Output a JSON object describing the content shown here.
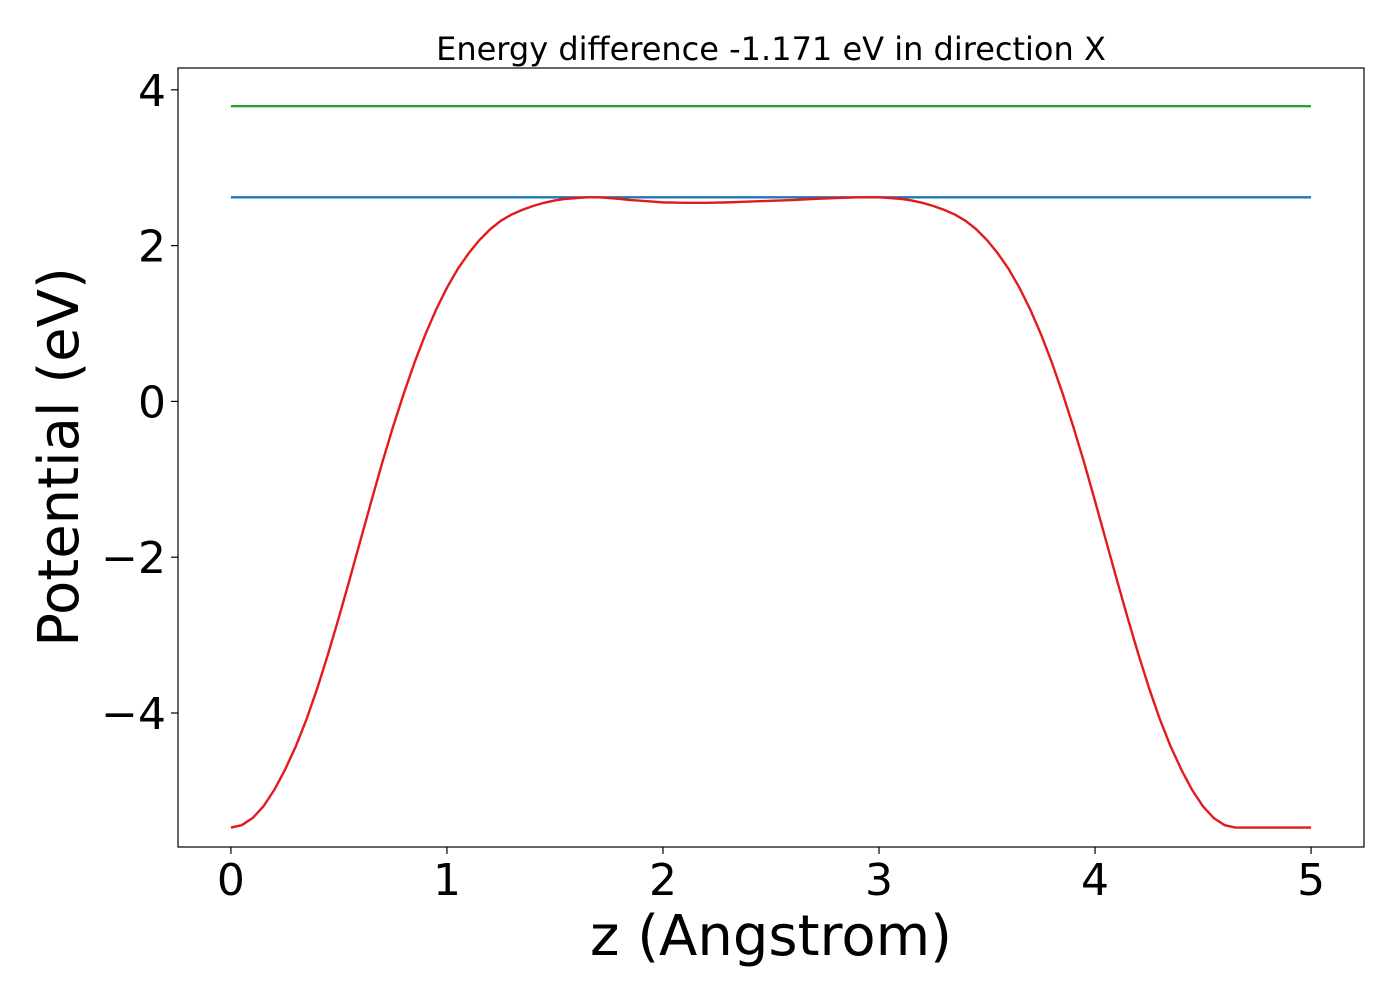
{
  "chart_data": {
    "type": "line",
    "title": "Energy difference -1.171 eV in direction X",
    "xlabel": "z (Angstrom)",
    "ylabel": "Potential (eV)",
    "xlim": [
      -0.245,
      5.245
    ],
    "ylim": [
      -5.72,
      4.28
    ],
    "xticks": [
      0,
      1,
      2,
      3,
      4,
      5
    ],
    "xtick_labels": [
      "0",
      "1",
      "2",
      "3",
      "4",
      "5"
    ],
    "yticks": [
      -4,
      -2,
      0,
      2,
      4
    ],
    "ytick_labels": [
      "−4",
      "−2",
      "0",
      "2",
      "4"
    ],
    "grid": false,
    "series": [
      {
        "color": "#2ca02c",
        "x": [
          0,
          5
        ],
        "y": [
          3.79,
          3.79
        ]
      },
      {
        "color": "#1f77b4",
        "x": [
          0,
          5
        ],
        "y": [
          2.62,
          2.62
        ]
      },
      {
        "color": "#e31a1c",
        "x": [
          0,
          0.05,
          0.1,
          0.15,
          0.2,
          0.25,
          0.3,
          0.35,
          0.4,
          0.45,
          0.5,
          0.55,
          0.6,
          0.65,
          0.7,
          0.75,
          0.8,
          0.85,
          0.9,
          0.95,
          1.0,
          1.05,
          1.1,
          1.15,
          1.2,
          1.25,
          1.3,
          1.35,
          1.4,
          1.45,
          1.5,
          1.55,
          1.6,
          1.65,
          1.7,
          1.75,
          1.8,
          1.85,
          1.9,
          1.95,
          2.0,
          2.1,
          2.2,
          2.3,
          2.4,
          2.5,
          2.6,
          2.7,
          2.8,
          2.9,
          3.0,
          3.05,
          3.1,
          3.15,
          3.2,
          3.25,
          3.3,
          3.35,
          3.4,
          3.45,
          3.5,
          3.55,
          3.6,
          3.65,
          3.7,
          3.75,
          3.8,
          3.85,
          3.9,
          3.95,
          4.0,
          4.05,
          4.1,
          4.15,
          4.2,
          4.25,
          4.3,
          4.35,
          4.4,
          4.45,
          4.5,
          4.55,
          4.6,
          4.65,
          4.7,
          4.75,
          4.8,
          4.85,
          4.9,
          4.95,
          5.0
        ],
        "y": [
          -5.47,
          -5.44,
          -5.35,
          -5.2,
          -4.99,
          -4.73,
          -4.43,
          -4.08,
          -3.68,
          -3.24,
          -2.77,
          -2.28,
          -1.78,
          -1.28,
          -0.79,
          -0.33,
          0.1,
          0.5,
          0.86,
          1.18,
          1.46,
          1.7,
          1.9,
          2.07,
          2.21,
          2.32,
          2.4,
          2.46,
          2.51,
          2.55,
          2.58,
          2.6,
          2.61,
          2.62,
          2.62,
          2.61,
          2.6,
          2.585,
          2.575,
          2.565,
          2.555,
          2.55,
          2.55,
          2.555,
          2.565,
          2.575,
          2.585,
          2.6,
          2.61,
          2.62,
          2.62,
          2.61,
          2.6,
          2.58,
          2.55,
          2.51,
          2.46,
          2.4,
          2.32,
          2.21,
          2.07,
          1.9,
          1.7,
          1.46,
          1.18,
          0.86,
          0.5,
          0.1,
          -0.33,
          -0.79,
          -1.28,
          -1.78,
          -2.28,
          -2.77,
          -3.24,
          -3.68,
          -4.08,
          -4.43,
          -4.73,
          -4.99,
          -5.2,
          -5.35,
          -5.44,
          -5.47,
          -5.47,
          -5.47,
          -5.47,
          -5.47,
          -5.47,
          -5.47,
          -5.47
        ]
      }
    ]
  }
}
